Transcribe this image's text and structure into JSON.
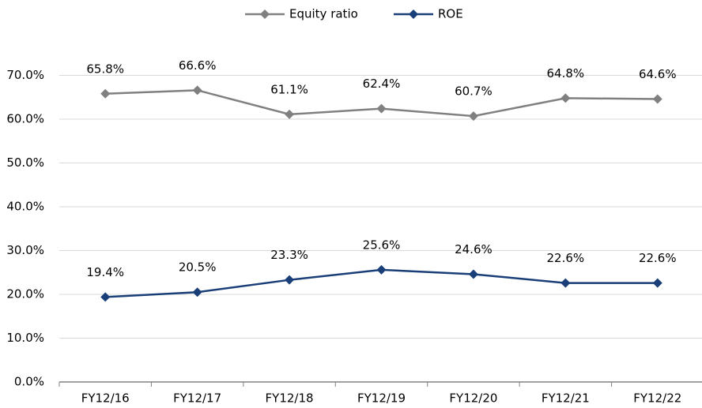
{
  "chart_data": {
    "type": "line",
    "categories": [
      "FY12/16",
      "FY12/17",
      "FY12/18",
      "FY12/19",
      "FY12/20",
      "FY12/21",
      "FY12/22"
    ],
    "series": [
      {
        "name": "Equity ratio",
        "color": "#808080",
        "values": [
          65.8,
          66.6,
          61.1,
          62.4,
          60.7,
          64.8,
          64.6
        ],
        "value_labels": [
          "65.8%",
          "66.6%",
          "61.1%",
          "62.4%",
          "60.7%",
          "64.8%",
          "64.6%"
        ]
      },
      {
        "name": "ROE",
        "color": "#1a3f78",
        "values": [
          19.4,
          20.5,
          23.3,
          25.6,
          24.6,
          22.6,
          22.6
        ],
        "value_labels": [
          "19.4%",
          "20.5%",
          "23.3%",
          "25.6%",
          "24.6%",
          "22.6%",
          "22.6%"
        ]
      }
    ],
    "ylim": [
      0,
      80
    ],
    "yticks": [
      {
        "value": 0,
        "label": "0.0%"
      },
      {
        "value": 10,
        "label": "10.0%"
      },
      {
        "value": 20,
        "label": "20.0%"
      },
      {
        "value": 30,
        "label": "30.0%"
      },
      {
        "value": 40,
        "label": "40.0%"
      },
      {
        "value": 50,
        "label": "50.0%"
      },
      {
        "value": 60,
        "label": "60.0%"
      },
      {
        "value": 70,
        "label": "70.0%"
      }
    ],
    "grid": true,
    "legend": "top"
  }
}
